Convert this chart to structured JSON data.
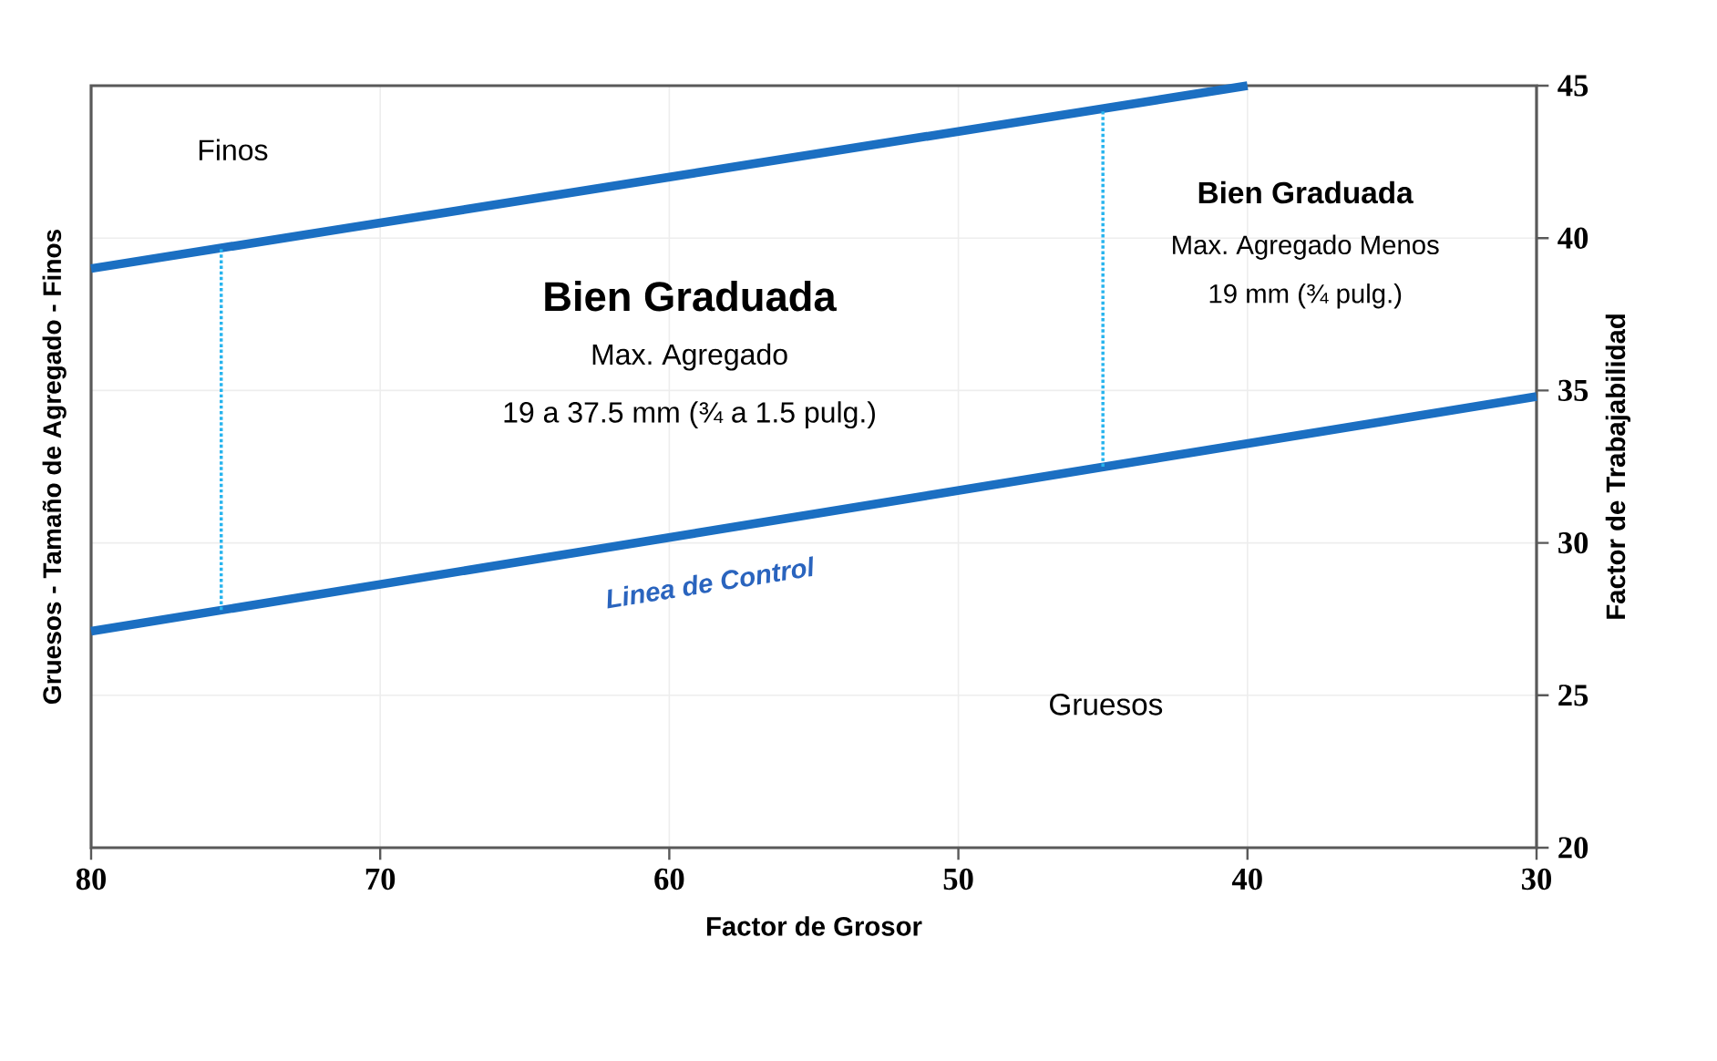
{
  "chart_data": {
    "type": "line",
    "xlabel": "Factor de Grosor",
    "ylabel": "Gruesos - Tamaño de Agregado - Finos",
    "y2label": "Factor de Trabajabilidad",
    "xlim": [
      80,
      30
    ],
    "xticks": [
      80,
      70,
      60,
      50,
      40,
      30
    ],
    "ylim": [
      20,
      45
    ],
    "yticks": [
      20,
      25,
      30,
      35,
      40,
      45
    ],
    "grid": true,
    "series": [
      {
        "color": "#1b6fc2",
        "x": [
          80,
          40
        ],
        "values": [
          39,
          45
        ],
        "line_style": "solid"
      },
      {
        "color": "#1b6fc2",
        "x": [
          80,
          30
        ],
        "values": [
          27.1,
          34.8
        ],
        "line_style": "solid"
      },
      {
        "color": "#27b4ee",
        "x": [
          75.5,
          75.5
        ],
        "values": [
          27.8,
          39.7
        ],
        "line_style": "dotted"
      },
      {
        "color": "#27b4ee",
        "x": [
          45,
          45
        ],
        "values": [
          32.5,
          44.2
        ],
        "line_style": "dotted"
      }
    ],
    "annotations": [
      "Finos",
      "**Bien Graduada**",
      "Max. Agregado",
      "19 a 37.5 mm (¾ a 1.5 pulg.)",
      "**Bien Graduada**",
      "Max. Agregado Menos",
      "19 mm (¾ pulg.)",
      "Linea de Control",
      "Gruesos"
    ]
  }
}
